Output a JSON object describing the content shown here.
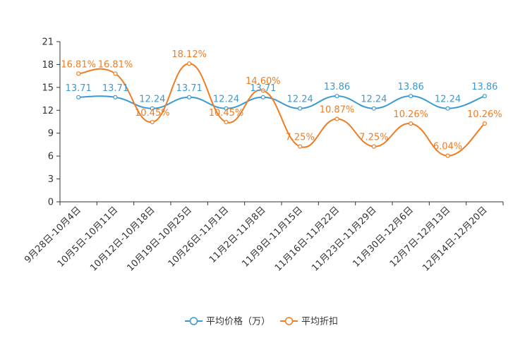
{
  "chart_data": {
    "type": "line",
    "categories": [
      "9月28日-10月4日",
      "10月5日-10月11日",
      "10月12日-10月18日",
      "10月19日-10月25日",
      "10月26日-11月1日",
      "11月2日-11月8日",
      "11月9日-11月15日",
      "11月16日-11月22日",
      "11月23日-11月29日",
      "11月30日-12月6日",
      "12月7日-12月13日",
      "12月14日-12月20日"
    ],
    "series": [
      {
        "name": "平均价格（万）",
        "color": "#3a9ad3",
        "values": [
          13.71,
          13.71,
          12.24,
          13.71,
          12.24,
          13.71,
          12.24,
          13.86,
          12.24,
          13.86,
          12.24,
          13.86
        ],
        "labels": [
          "13.71",
          "13.71",
          "12.24",
          "13.71",
          "12.24",
          "13.71",
          "12.24",
          "13.86",
          "12.24",
          "13.86",
          "12.24",
          "13.86"
        ]
      },
      {
        "name": "平均折扣",
        "color": "#f07c22",
        "values": [
          16.81,
          16.81,
          10.45,
          18.12,
          10.45,
          14.6,
          7.25,
          10.87,
          7.25,
          10.26,
          6.04,
          10.26
        ],
        "labels": [
          "16.81%",
          "16.81%",
          "10.45%",
          "18.12%",
          "10.45%",
          "14.60%",
          "7.25%",
          "10.87%",
          "7.25%",
          "10.26%",
          "6.04%",
          "10.26%"
        ]
      }
    ],
    "ylim": [
      0,
      21
    ],
    "yticks": [
      "0",
      "3",
      "6",
      "9",
      "12",
      "15",
      "18",
      "21"
    ],
    "legend": "bottom-center",
    "grid": false,
    "title": "",
    "xlabel": "",
    "ylabel": ""
  }
}
